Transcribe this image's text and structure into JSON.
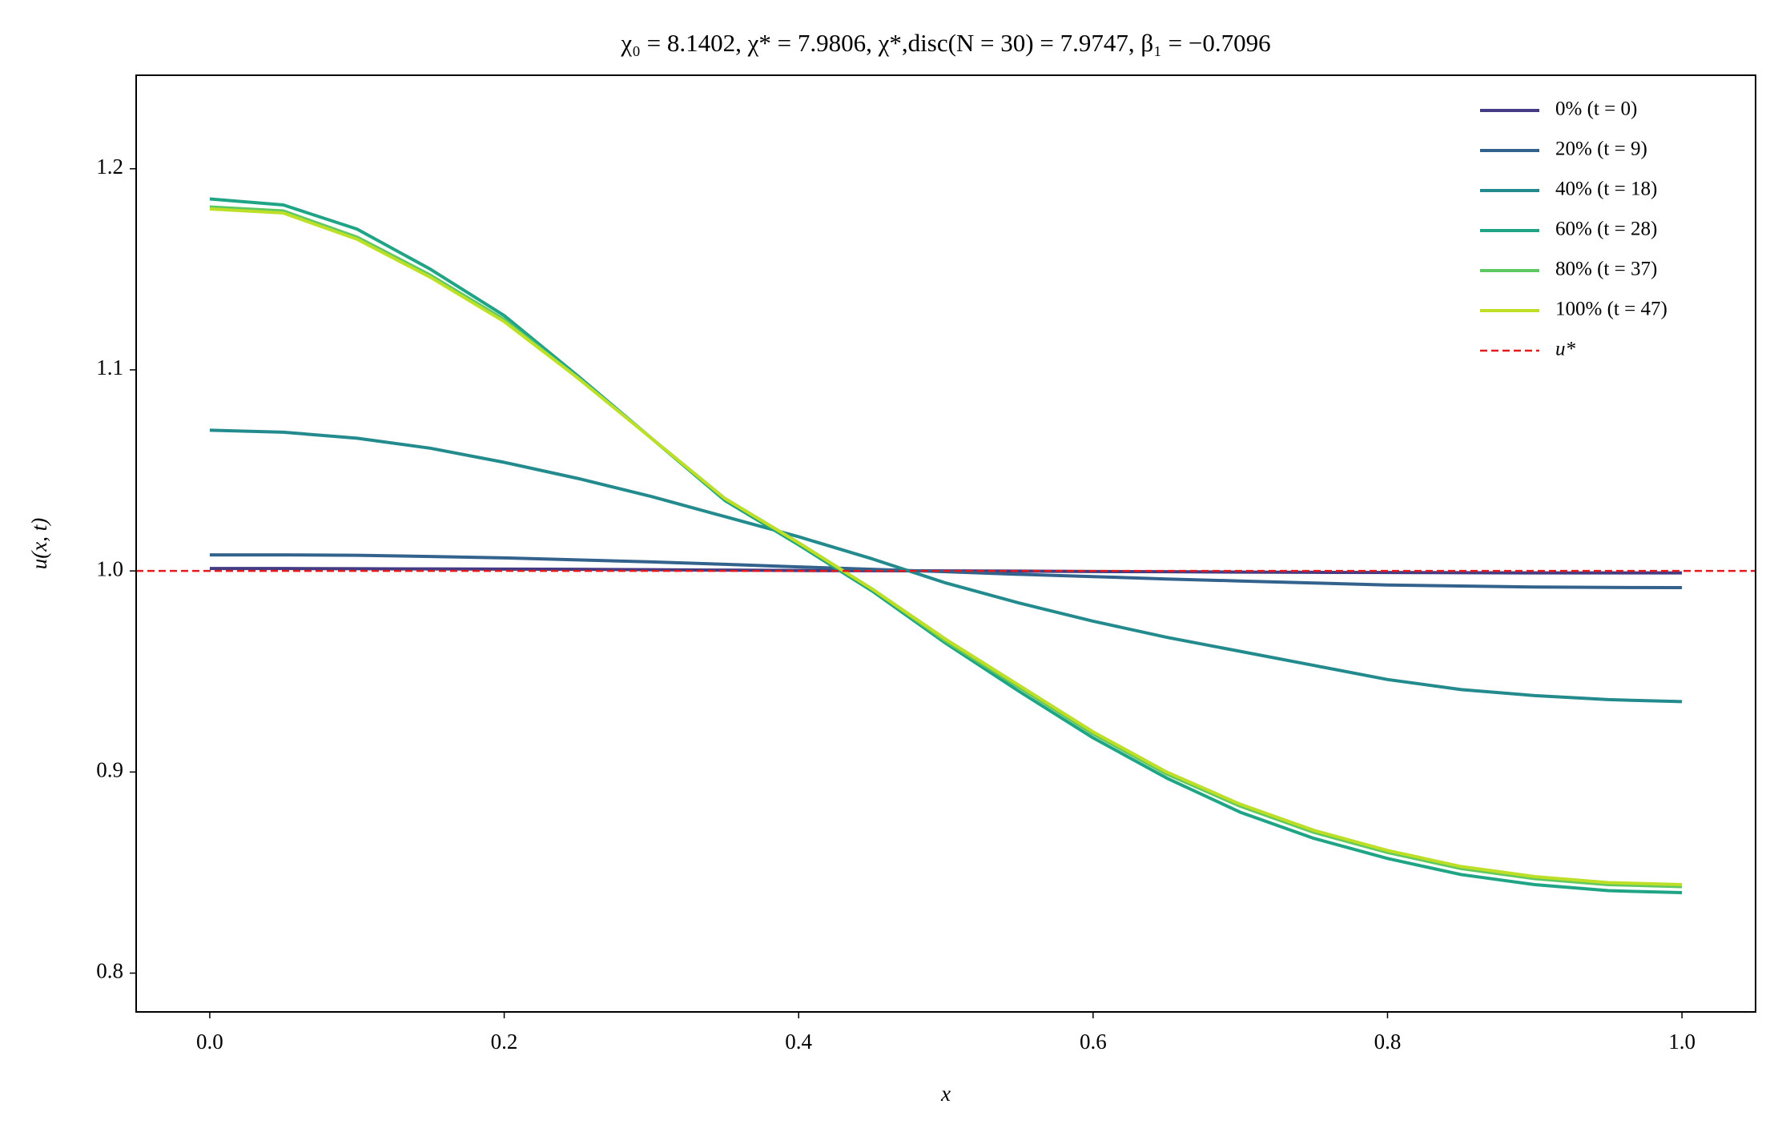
{
  "chart_data": {
    "type": "line",
    "title": "χ₀ = 8.1402,  χ* = 7.9806,  χ*,disc(N = 30) = 7.9747,  β₁ = −0.7096",
    "x_label": "x",
    "y_label": "u(x, t)",
    "x": [
      0,
      0.05,
      0.1,
      0.15,
      0.2,
      0.25,
      0.3,
      0.35,
      0.4,
      0.45,
      0.5,
      0.55,
      0.6,
      0.65,
      0.7,
      0.75,
      0.8,
      0.85,
      0.9,
      0.95,
      1
    ],
    "series": [
      {
        "name": "0% (t = 0)",
        "color": "#433c84",
        "values": [
          1.0012,
          1.0012,
          1.0011,
          1.001,
          1.0009,
          1.0008,
          1.0006,
          1.0004,
          1.0002,
          1.0001,
          1.0,
          0.9999,
          0.9997,
          0.9996,
          0.9994,
          0.9993,
          0.9992,
          0.9991,
          0.999,
          0.999,
          0.999
        ]
      },
      {
        "name": "20% (t = 9)",
        "color": "#33638d",
        "values": [
          1.008,
          1.008,
          1.0078,
          1.0072,
          1.0065,
          1.0055,
          1.0045,
          1.0033,
          1.002,
          1.0008,
          0.9996,
          0.9983,
          0.9972,
          0.996,
          0.995,
          0.994,
          0.993,
          0.9925,
          0.992,
          0.9918,
          0.9917
        ]
      },
      {
        "name": "40% (t = 18)",
        "color": "#238a8d",
        "values": [
          1.07,
          1.069,
          1.066,
          1.061,
          1.054,
          1.046,
          1.037,
          1.027,
          1.017,
          1.006,
          0.994,
          0.984,
          0.975,
          0.967,
          0.96,
          0.953,
          0.946,
          0.941,
          0.938,
          0.936,
          0.935
        ]
      },
      {
        "name": "60% (t = 28)",
        "color": "#20a486",
        "values": [
          1.185,
          1.182,
          1.17,
          1.15,
          1.127,
          1.097,
          1.066,
          1.035,
          1.013,
          0.99,
          0.964,
          0.94,
          0.917,
          0.897,
          0.88,
          0.867,
          0.857,
          0.849,
          0.844,
          0.841,
          0.84
        ]
      },
      {
        "name": "80% (t = 37)",
        "color": "#5ec962",
        "values": [
          1.181,
          1.179,
          1.166,
          1.147,
          1.125,
          1.096,
          1.066,
          1.036,
          1.014,
          0.991,
          0.965,
          0.942,
          0.919,
          0.899,
          0.883,
          0.87,
          0.86,
          0.852,
          0.847,
          0.844,
          0.843
        ]
      },
      {
        "name": "100% (t = 47)",
        "color": "#bddf26",
        "values": [
          1.18,
          1.178,
          1.165,
          1.146,
          1.124,
          1.096,
          1.066,
          1.036,
          1.014,
          0.991,
          0.966,
          0.943,
          0.92,
          0.9,
          0.884,
          0.871,
          0.861,
          0.853,
          0.848,
          0.845,
          0.844
        ]
      }
    ],
    "reference_line": {
      "name": "u*",
      "value": 1,
      "color": "#e41a1c",
      "style": "dashed"
    },
    "xlim": [
      -0.05,
      1.05
    ],
    "xticks": [
      {
        "value": 0,
        "label": "0.0"
      },
      0.2,
      0.4,
      0.6,
      0.8,
      {
        "value": 1,
        "label": "1.0"
      }
    ],
    "ylim": [
      0.7807,
      1.2465
    ],
    "yticks": [
      0.8,
      0.9,
      {
        "value": 1,
        "label": "1.0"
      },
      1.1,
      1.2
    ],
    "legend": "upper right",
    "grid": false
  }
}
